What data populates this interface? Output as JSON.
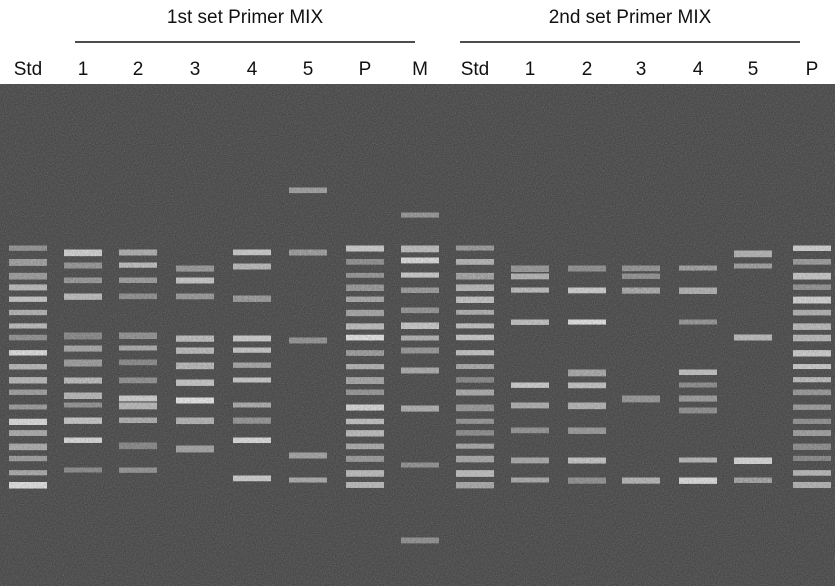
{
  "header": {
    "left_title": "1st set Primer MIX",
    "right_title": "2nd set Primer MIX"
  },
  "lanes": [
    "Std",
    "1",
    "2",
    "3",
    "4",
    "5",
    "P",
    "M",
    "Std",
    "1",
    "2",
    "3",
    "4",
    "5",
    "P"
  ]
}
